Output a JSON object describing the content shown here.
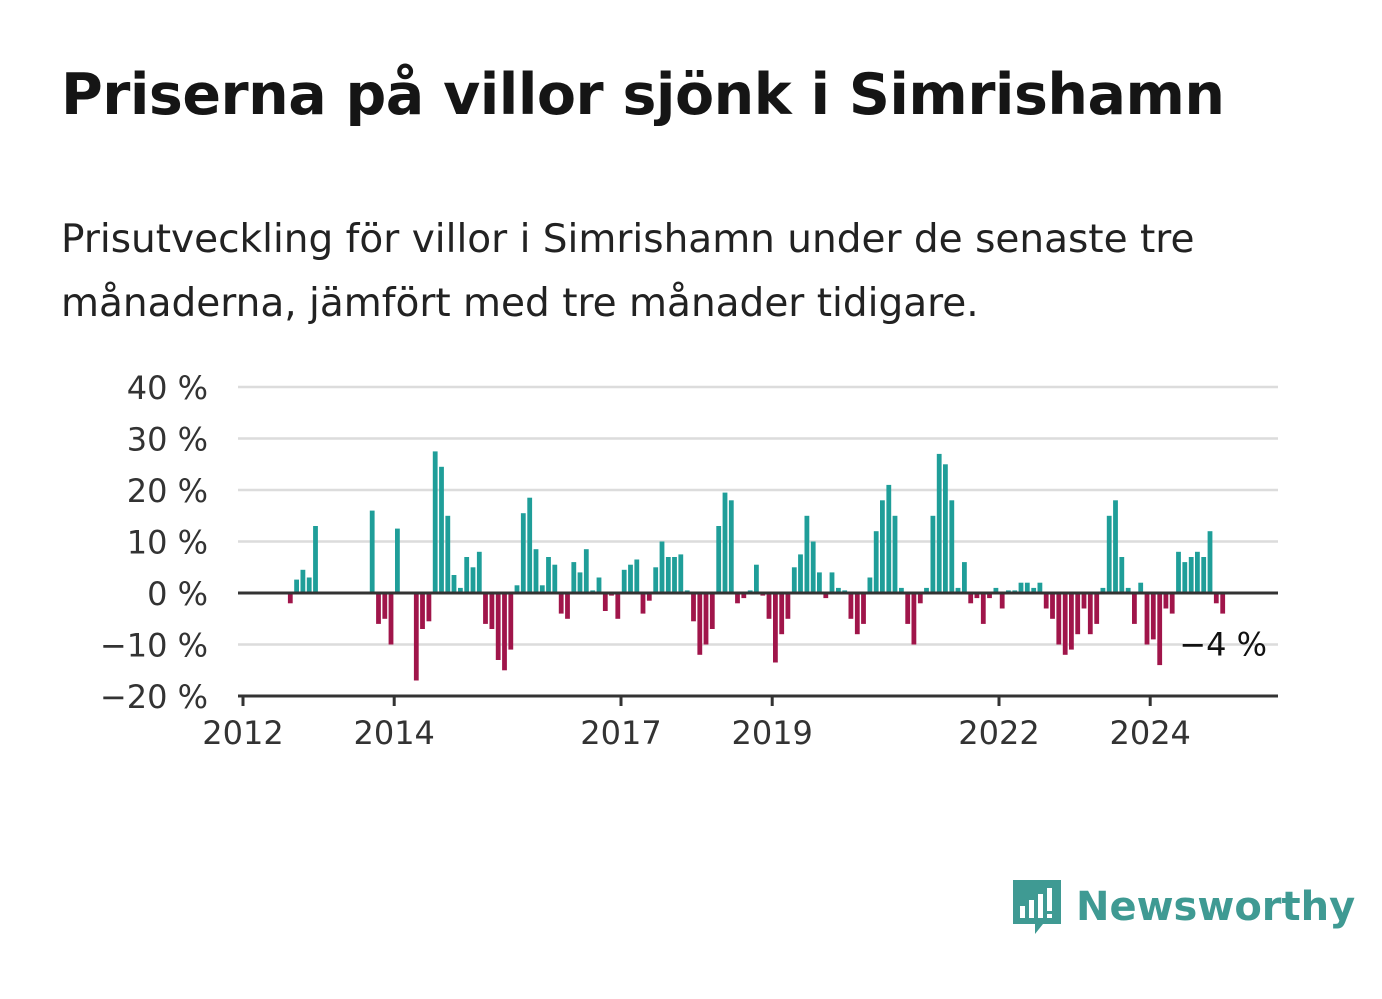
{
  "header": {
    "title": "Priserna på villor sjönk i Simrishamn",
    "subtitle": "Prisutveckling för villor i Simrishamn under de senaste tre månaderna, jämfört med tre månader tidigare."
  },
  "brand": {
    "name": "Newsworthy",
    "icon": "newsworthy-logo-icon",
    "color": "#3f9a93"
  },
  "colors": {
    "positive": "#1f9e99",
    "negative": "#a0154a",
    "grid": "#dcdcdc",
    "axis": "#333333"
  },
  "chart_data": {
    "type": "bar",
    "title": "Priserna på villor sjönk i Simrishamn",
    "xlabel": "",
    "ylabel": "",
    "ylim": [
      -20,
      40
    ],
    "yticks": [
      40,
      30,
      20,
      10,
      0,
      -10,
      -20
    ],
    "ytick_labels": [
      "40 %",
      "30 %",
      "20 %",
      "10 %",
      "0 %",
      "−10 %",
      "−20 %"
    ],
    "xticks": [
      "2012",
      "2014",
      "2017",
      "2019",
      "2022",
      "2024"
    ],
    "grid": true,
    "end_label": "−4 %",
    "start": "2012-01",
    "values": [
      null,
      null,
      null,
      null,
      null,
      null,
      null,
      -2,
      2.6,
      4.5,
      3,
      13,
      null,
      null,
      null,
      null,
      null,
      null,
      null,
      null,
      16,
      -6,
      -5,
      -10,
      12.5,
      null,
      null,
      -17,
      -7,
      -5.5,
      27.5,
      24.5,
      15,
      3.5,
      1,
      7,
      5,
      8,
      -6,
      -7,
      -13,
      -15,
      -11,
      1.5,
      15.5,
      18.5,
      8.5,
      1.5,
      7,
      5.5,
      -4,
      -5,
      6,
      4,
      8.5,
      0.5,
      3,
      -3.5,
      -0.5,
      -5,
      4.5,
      5.5,
      6.5,
      -4,
      -1.5,
      5,
      10,
      7,
      7,
      7.5,
      0.5,
      -5.5,
      -12,
      -10,
      -7,
      13,
      19.5,
      18,
      -2,
      -1,
      0.5,
      5.5,
      -0.5,
      -5,
      -13.5,
      -8,
      -5,
      5,
      7.5,
      15,
      10,
      4,
      -1,
      4,
      1,
      0.5,
      -5,
      -8,
      -6,
      3,
      12,
      18,
      21,
      15,
      1,
      -6,
      -10,
      -2,
      1,
      15,
      27,
      25,
      18,
      1,
      6,
      -2,
      -1,
      -6,
      -1,
      1,
      -3,
      0.5,
      0.5,
      2,
      2,
      1,
      2,
      -3,
      -5,
      -10,
      -12,
      -11,
      -8,
      -3,
      -8,
      -6,
      1,
      15,
      18,
      7,
      1,
      -6,
      2,
      -10,
      -9,
      -14,
      -3,
      -4,
      8,
      6,
      7,
      8,
      7,
      12,
      -2,
      -4
    ]
  }
}
